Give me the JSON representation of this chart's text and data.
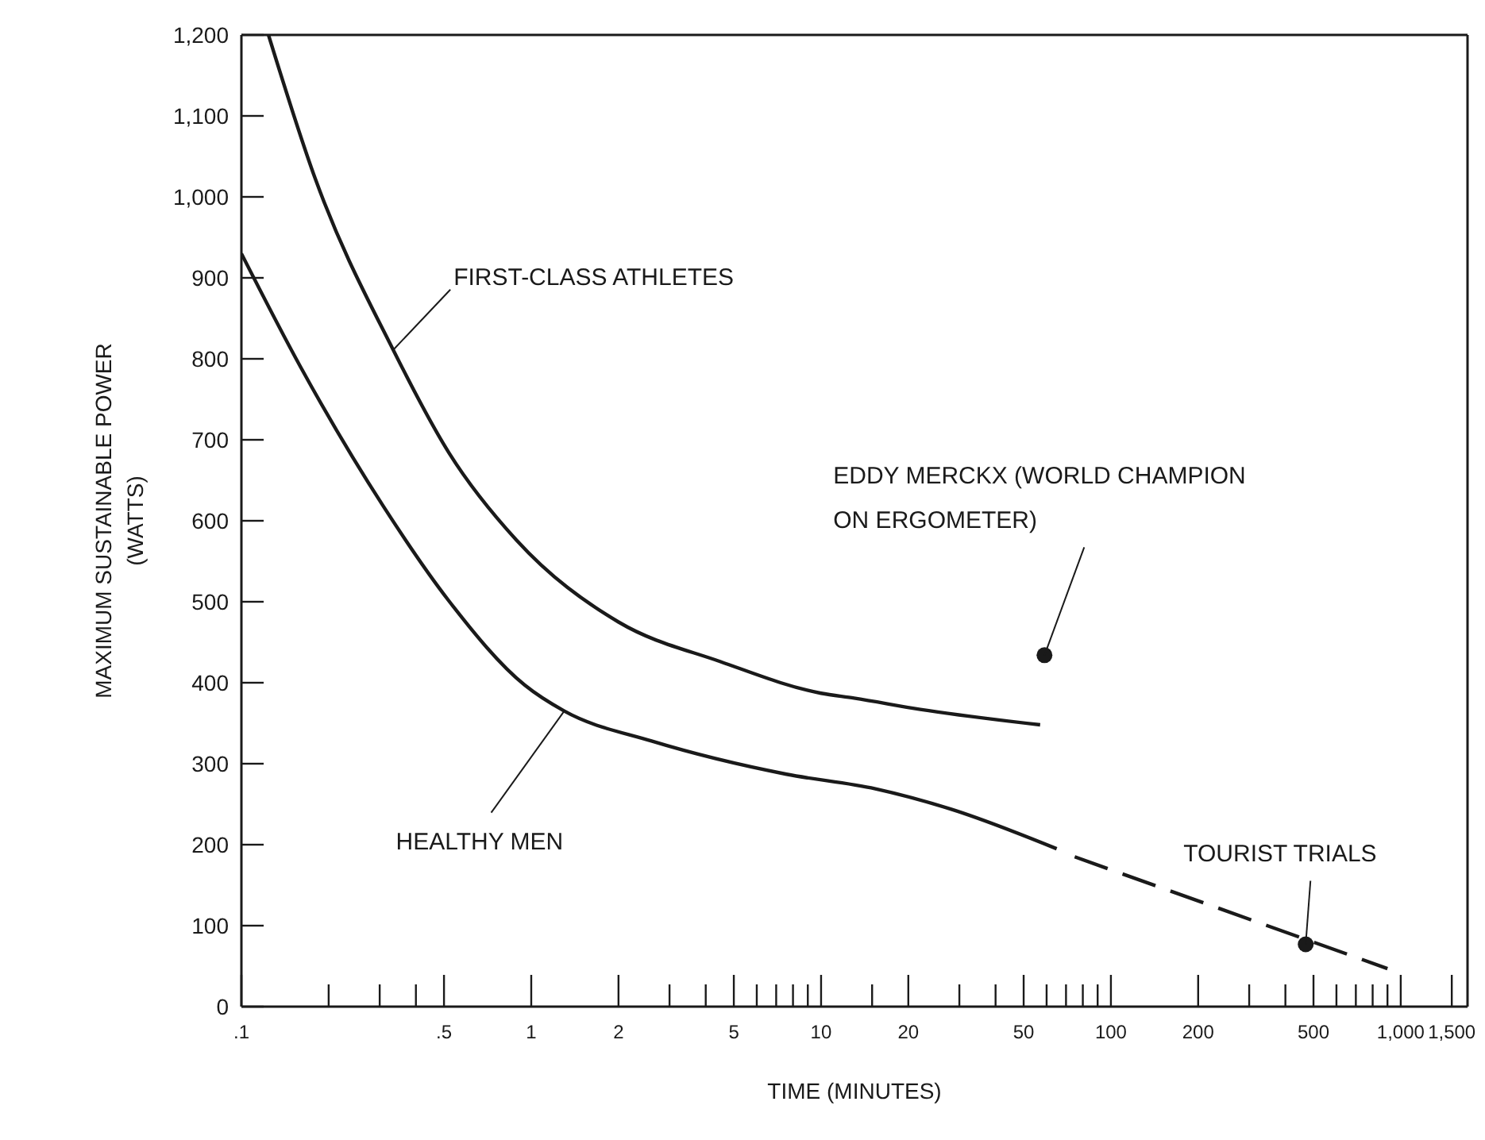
{
  "chart_data": {
    "type": "line",
    "xlabel": "TIME (MINUTES)",
    "ylabel": "MAXIMUM SUSTAINABLE POWER\n(WATTS)",
    "log": "x",
    "marker": "none",
    "line_style": "solid",
    "xlim": [
      0.1,
      1700
    ],
    "ylim": [
      0,
      1200
    ],
    "xticks": [
      {
        "value": 0.1,
        "label": ".1"
      },
      {
        "value": 0.2,
        "label": null
      },
      {
        "value": 0.3,
        "label": null
      },
      {
        "value": 0.4,
        "label": null
      },
      {
        "value": 0.5,
        "label": ".5"
      },
      1,
      2,
      {
        "value": 3,
        "label": null
      },
      {
        "value": 4,
        "label": null
      },
      5,
      {
        "value": 6,
        "label": null
      },
      {
        "value": 7,
        "label": null
      },
      {
        "value": 8,
        "label": null
      },
      {
        "value": 9,
        "label": null
      },
      10,
      {
        "value": 15,
        "label": null
      },
      20,
      {
        "value": 30,
        "label": null
      },
      {
        "value": 40,
        "label": null
      },
      50,
      {
        "value": 60,
        "label": null
      },
      {
        "value": 70,
        "label": null
      },
      {
        "value": 80,
        "label": null
      },
      {
        "value": 90,
        "label": null
      },
      100,
      200,
      {
        "value": 300,
        "label": null
      },
      {
        "value": 400,
        "label": null
      },
      500,
      {
        "value": 600,
        "label": null
      },
      {
        "value": 700,
        "label": null
      },
      {
        "value": 800,
        "label": null
      },
      {
        "value": 900,
        "label": null
      },
      {
        "value": 1000,
        "label": "1,000"
      },
      {
        "value": 1500,
        "label": "1,500"
      }
    ],
    "yticks": [
      0,
      100,
      200,
      300,
      400,
      500,
      600,
      700,
      800,
      900,
      {
        "value": 1000,
        "label": "1,000"
      },
      {
        "value": 1100,
        "label": "1,100"
      },
      {
        "value": 1200,
        "label": "1,200"
      }
    ],
    "series": [
      {
        "color": "#1a1a1a",
        "x": [
          0.124,
          0.18,
          0.334,
          0.52,
          0.89,
          2,
          4.5,
          10,
          13,
          22,
          57
        ],
        "values": [
          1200,
          1022,
          811,
          684,
          576,
          475,
          426,
          387,
          381,
          367,
          348
        ]
      },
      {
        "color": "#1a1a1a",
        "x": [
          0.1,
          0.16,
          0.31,
          0.52,
          0.95,
          1.3,
          2.6,
          7.6,
          15.4,
          28,
          65
        ],
        "values": [
          930,
          790,
          617,
          501,
          397,
          365,
          328,
          287,
          269,
          244,
          195
        ]
      },
      {
        "line_style": "dashed",
        "color": "#1a1a1a",
        "x": [
          75,
          900
        ],
        "values": [
          185,
          47
        ]
      },
      {
        "type": "scatter",
        "marker": "circle",
        "color": "#1a1a1a",
        "x": [
          59,
          470
        ],
        "values": [
          434,
          77
        ]
      }
    ],
    "annotations": [
      {
        "text": "FIRST-CLASS ATHLETES",
        "x": 0.334,
        "y": 811
      },
      {
        "text": "HEALTHY MEN",
        "x": 1.3,
        "y": 365
      },
      {
        "text": "EDDY MERCKX (WORLD CHAMPION\nON ERGOMETER)",
        "x": 59,
        "y": 434
      },
      {
        "text": "TOURIST TRIALS",
        "x": 470,
        "y": 77
      }
    ]
  }
}
